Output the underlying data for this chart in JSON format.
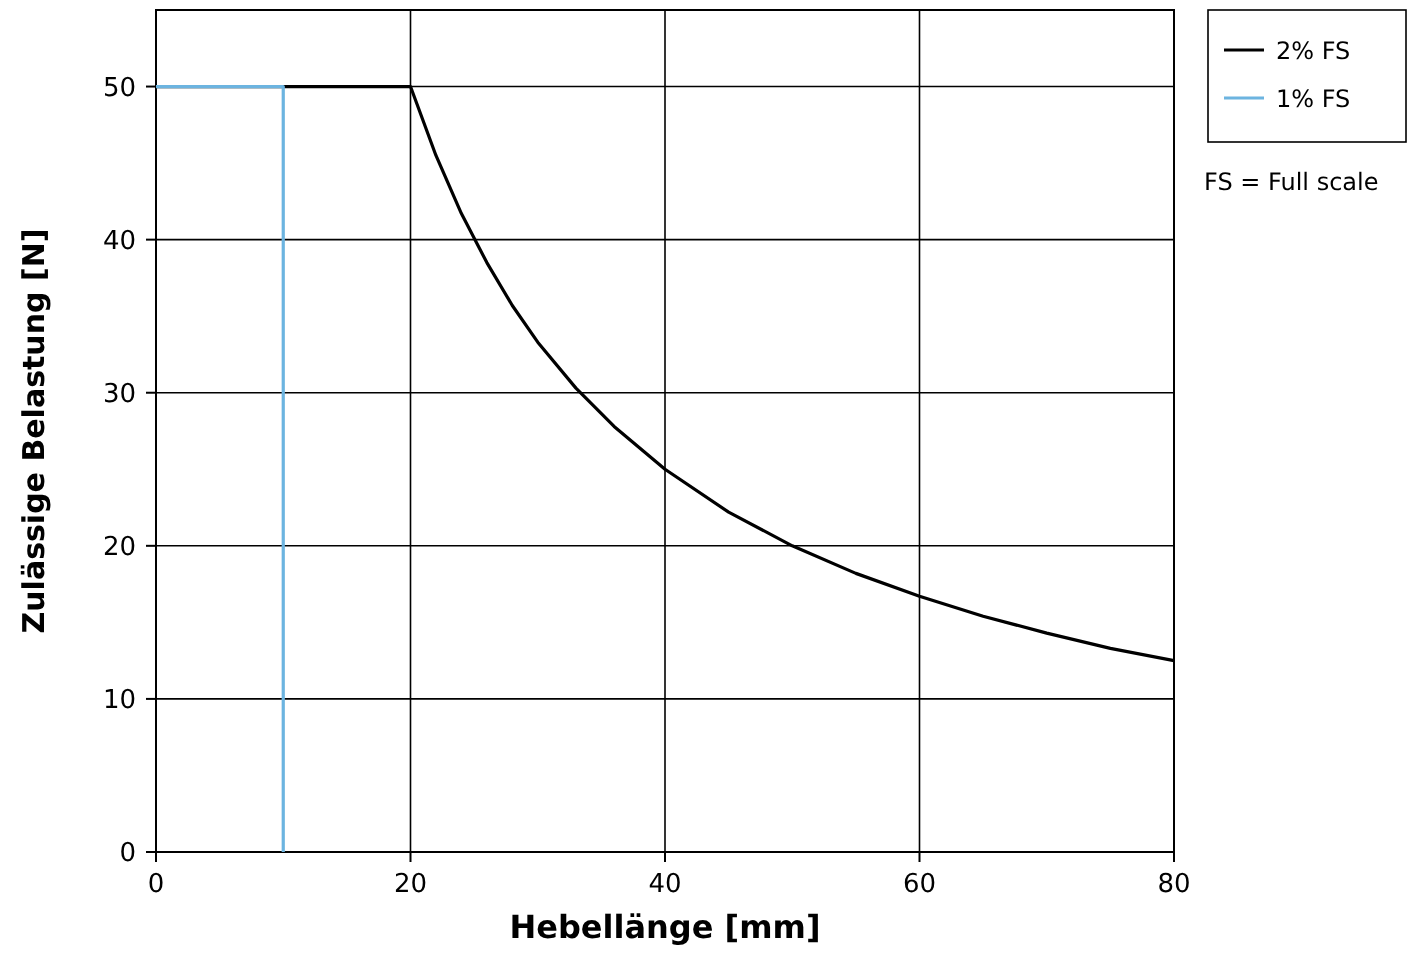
{
  "chart_data": {
    "type": "line",
    "xlabel": "Hebellänge [mm]",
    "ylabel": "Zulässige Belastung [N]",
    "xlim": [
      0,
      80
    ],
    "xticks": [
      0,
      20,
      40,
      60,
      80
    ],
    "ylim": [
      0,
      55
    ],
    "yticks": [
      0,
      10,
      20,
      30,
      40,
      50
    ],
    "grid": true,
    "legend": "top right",
    "marker": "none",
    "line_style": "solid",
    "series": [
      {
        "name": "2% FS",
        "color": "#000000",
        "x": [
          0,
          20,
          22,
          24,
          26,
          28,
          30,
          33,
          36,
          40,
          45,
          50,
          55,
          60,
          65,
          70,
          75,
          80
        ],
        "values": [
          50,
          50,
          45.5,
          41.7,
          38.5,
          35.7,
          33.3,
          30.3,
          27.8,
          25,
          22.2,
          20,
          18.2,
          16.7,
          15.4,
          14.3,
          13.3,
          12.5
        ]
      },
      {
        "name": "1% FS",
        "color": "#6cb4e0",
        "x": [
          0,
          10,
          10
        ],
        "values": [
          50,
          50,
          0
        ]
      }
    ],
    "annotations": [
      "FS = Full scale"
    ]
  }
}
